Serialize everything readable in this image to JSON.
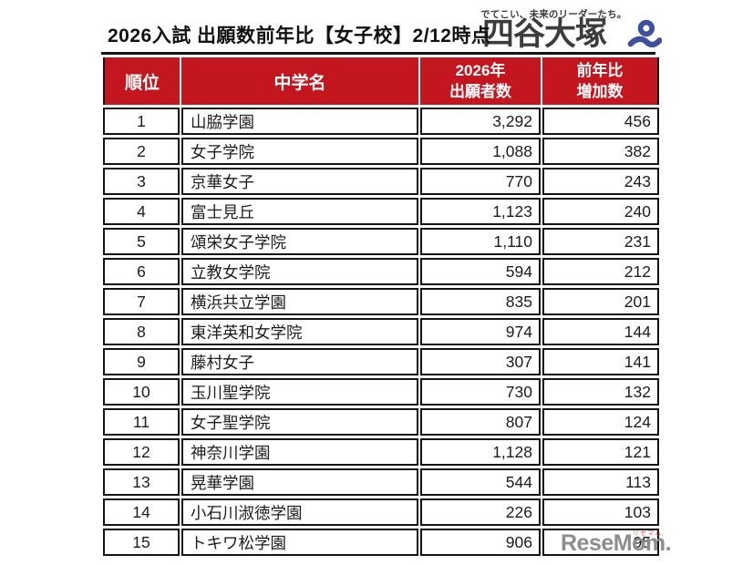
{
  "colors": {
    "header_bg": "#c3161e",
    "border": "#141414",
    "title_text": "#111111",
    "brand_gray": "#3c3c3c",
    "brand_blue": "#3d4f9e",
    "footer_gray": "#8d8d8d",
    "footer_red": "#e8544a"
  },
  "header": {
    "title": "2026入試 出願数前年比【女子校】2/12時点",
    "brand": {
      "tagline": "でてこい、未来のリーダーたち。",
      "name": "四谷大塚"
    }
  },
  "table": {
    "columns": [
      {
        "label": "順位"
      },
      {
        "label": "中学名"
      },
      {
        "line1": "2026年",
        "line2": "出願者数"
      },
      {
        "line1": "前年比",
        "line2": "増加数"
      }
    ],
    "rows": [
      {
        "rank": "1",
        "school": "山脇学園",
        "applicants": "3,292",
        "increase": "456"
      },
      {
        "rank": "2",
        "school": "女子学院",
        "applicants": "1,088",
        "increase": "382"
      },
      {
        "rank": "3",
        "school": "京華女子",
        "applicants": "770",
        "increase": "243"
      },
      {
        "rank": "4",
        "school": "富士見丘",
        "applicants": "1,123",
        "increase": "240"
      },
      {
        "rank": "5",
        "school": "頌栄女子学院",
        "applicants": "1,110",
        "increase": "231"
      },
      {
        "rank": "6",
        "school": "立教女学院",
        "applicants": "594",
        "increase": "212"
      },
      {
        "rank": "7",
        "school": "横浜共立学園",
        "applicants": "835",
        "increase": "201"
      },
      {
        "rank": "8",
        "school": "東洋英和女学院",
        "applicants": "974",
        "increase": "144"
      },
      {
        "rank": "9",
        "school": "藤村女子",
        "applicants": "307",
        "increase": "141"
      },
      {
        "rank": "10",
        "school": "玉川聖学院",
        "applicants": "730",
        "increase": "132"
      },
      {
        "rank": "11",
        "school": "女子聖学院",
        "applicants": "807",
        "increase": "124"
      },
      {
        "rank": "12",
        "school": "神奈川学園",
        "applicants": "1,128",
        "increase": "121"
      },
      {
        "rank": "13",
        "school": "晃華学園",
        "applicants": "544",
        "increase": "113"
      },
      {
        "rank": "14",
        "school": "小石川淑徳学園",
        "applicants": "226",
        "increase": "103"
      },
      {
        "rank": "15",
        "school": "トキワ松学園",
        "applicants": "906",
        "increase": "95"
      }
    ]
  },
  "footer": {
    "logo_text": "ReseMom",
    "logo_suffix": ".",
    "logo_ruby": "リセマム"
  },
  "chart_data": {
    "type": "table",
    "title": "2026入試 出願数前年比【女子校】2/12時点",
    "brand": "四谷大塚",
    "columns": [
      "順位",
      "中学名",
      "2026年出願者数",
      "前年比増加数"
    ],
    "rows": [
      [
        1,
        "山脇学園",
        3292,
        456
      ],
      [
        2,
        "女子学院",
        1088,
        382
      ],
      [
        3,
        "京華女子",
        770,
        243
      ],
      [
        4,
        "富士見丘",
        1123,
        240
      ],
      [
        5,
        "頌栄女子学院",
        1110,
        231
      ],
      [
        6,
        "立教女学院",
        594,
        212
      ],
      [
        7,
        "横浜共立学園",
        835,
        201
      ],
      [
        8,
        "東洋英和女学院",
        974,
        144
      ],
      [
        9,
        "藤村女子",
        307,
        141
      ],
      [
        10,
        "玉川聖学院",
        730,
        132
      ],
      [
        11,
        "女子聖学院",
        807,
        124
      ],
      [
        12,
        "神奈川学園",
        1128,
        121
      ],
      [
        13,
        "晃華学園",
        544,
        113
      ],
      [
        14,
        "小石川淑徳学園",
        226,
        103
      ],
      [
        15,
        "トキワ松学園",
        906,
        95
      ]
    ]
  }
}
